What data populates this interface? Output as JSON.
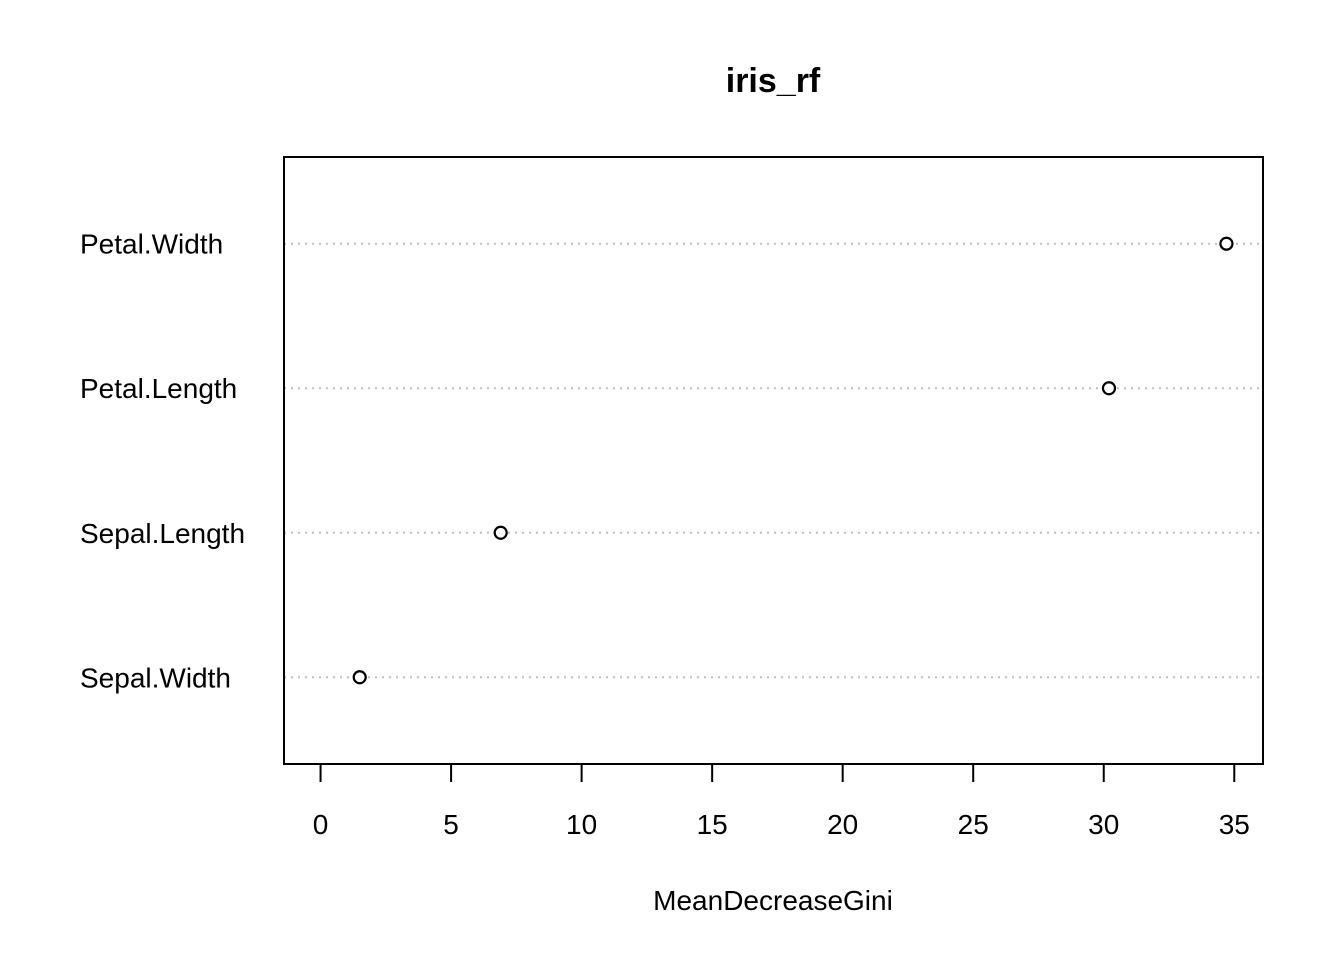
{
  "chart_data": {
    "type": "scatter",
    "title": "iris_rf",
    "xlabel": "MeanDecreaseGini",
    "ylabel": "",
    "categories": [
      "Sepal.Width",
      "Sepal.Length",
      "Petal.Length",
      "Petal.Width"
    ],
    "values": [
      1.5,
      6.9,
      30.2,
      34.7
    ],
    "xlim": [
      -1.4,
      36.1
    ],
    "x_ticks": [
      0,
      5,
      10,
      15,
      20,
      25,
      30,
      35
    ],
    "x_tick_labels": [
      "0",
      "5",
      "10",
      "15",
      "20",
      "25",
      "30",
      "35"
    ],
    "grid": "dotted horizontal guide lines per category",
    "marker": "open circle",
    "colors": {
      "marker": "#000000",
      "guide": "#bebebe",
      "frame": "#000000"
    }
  }
}
